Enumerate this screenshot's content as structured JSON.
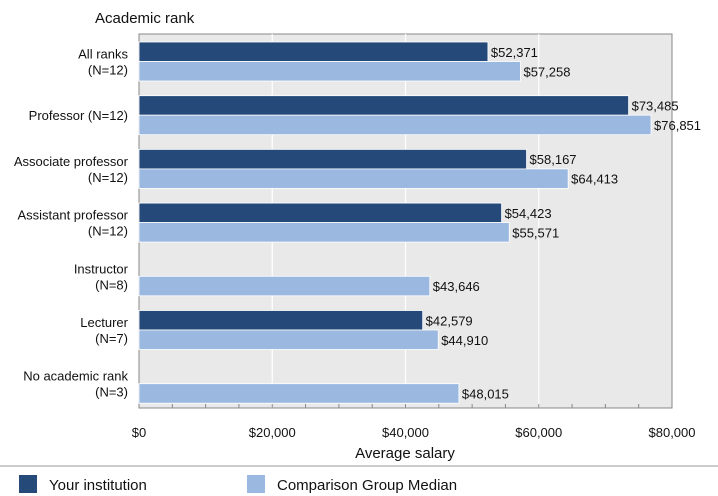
{
  "chart_data": {
    "type": "bar",
    "orientation": "horizontal",
    "title": "Academic rank",
    "xlabel": "Average salary",
    "xlim": [
      0,
      80000
    ],
    "ticks": [
      {
        "value": 0,
        "label": "$0"
      },
      {
        "value": 20000,
        "label": "$20,000"
      },
      {
        "value": 40000,
        "label": "$40,000"
      },
      {
        "value": 60000,
        "label": "$60,000"
      },
      {
        "value": 80000,
        "label": "$80,000"
      }
    ],
    "grid": true,
    "legend_position": "bottom",
    "categories": [
      [
        "All ranks",
        "(N=12)"
      ],
      [
        "Professor (N=12)"
      ],
      [
        "Associate professor",
        "(N=12)"
      ],
      [
        "Assistant professor",
        "(N=12)"
      ],
      [
        "Instructor",
        "(N=8)"
      ],
      [
        "Lecturer",
        "(N=7)"
      ],
      [
        "No academic rank",
        "(N=3)"
      ]
    ],
    "series": [
      {
        "name": "Your institution",
        "color": "#254a7a",
        "values": [
          52371,
          73485,
          58167,
          54423,
          null,
          42579,
          null
        ],
        "labels": [
          "$52,371",
          "$73,485",
          "$58,167",
          "$54,423",
          "",
          "$42,579",
          ""
        ]
      },
      {
        "name": "Comparison Group Median",
        "color": "#9ab8e0",
        "values": [
          57258,
          76851,
          64413,
          55571,
          43646,
          44910,
          48015
        ],
        "labels": [
          "$57,258",
          "$76,851",
          "$64,413",
          "$55,571",
          "$43,646",
          "$44,910",
          "$48,015"
        ]
      }
    ]
  }
}
